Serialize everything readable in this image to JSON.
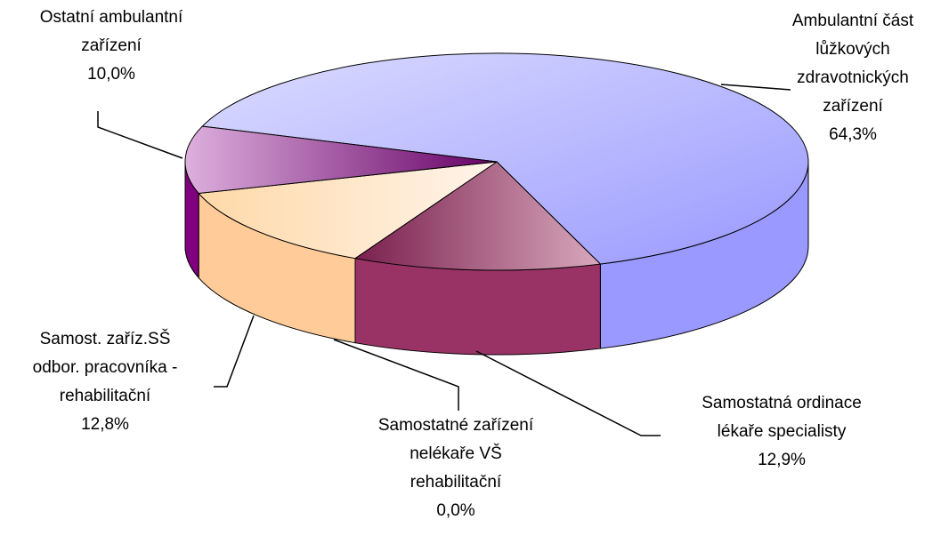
{
  "chart_data": {
    "type": "pie3d",
    "categories": [
      "Ambulantní část lůžkových zdravotnických zařízení",
      "Samostatná ordinace lékaře specialisty",
      "Samostatné zařízení nelékaře VŠ rehabilitační",
      "Samost. zaříz.SŠ odbor. pracovníka - rehabilitační",
      "Ostatní ambulantní zařízení"
    ],
    "values": [
      64.3,
      12.9,
      0.0,
      12.8,
      10.0
    ],
    "value_labels": [
      "64,3%",
      "12,9%",
      "0,0%",
      "12,8%",
      "10,0%"
    ],
    "colors": [
      "#9999ff",
      "#993366",
      "#ffffcc",
      "#ffcc99",
      "#800080"
    ]
  }
}
